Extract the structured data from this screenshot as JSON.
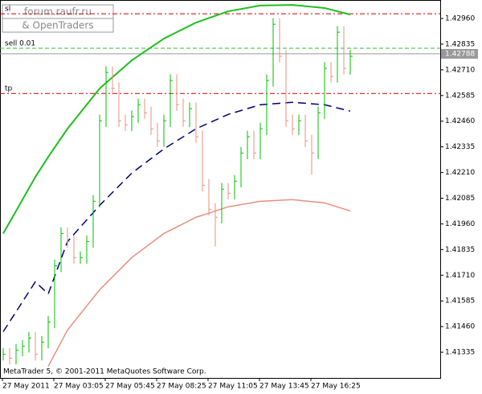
{
  "chart_data": {
    "type": "ohlc",
    "watermark": [
      "forum.raufr.ru",
      "& OpenTraders"
    ],
    "copyright": "MetaTrader 5, © 2001-2011 MetaQuotes Software Corp.",
    "time_labels": [
      "27 May 2011",
      "27 May 03:05",
      "27 May 05:45",
      "27 May 08:25",
      "27 May 11:05",
      "27 May 13:45",
      "27 May 16:25"
    ],
    "up_color": "#00c000",
    "down_color": "#e8907c",
    "close": [
      1.41325,
      1.41306,
      1.41345,
      1.41364,
      1.41404,
      1.41325,
      1.41384,
      1.41482,
      1.41756,
      1.41913,
      1.41874,
      1.41796,
      1.41796,
      1.41874,
      1.4207,
      1.42462,
      1.42697,
      1.42619,
      1.42462,
      1.42442,
      1.42482,
      1.4254,
      1.42501,
      1.42423,
      1.42364,
      1.42462,
      1.42658,
      1.4254,
      1.42462,
      1.42521,
      1.42384,
      1.42148,
      1.42031,
      1.41992,
      1.42129,
      1.42109,
      1.42168,
      1.42305,
      1.42384,
      1.42305,
      1.42423,
      1.42658,
      1.42932,
      1.42776,
      1.42462,
      1.42423,
      1.42462,
      1.42364,
      1.42305,
      1.42501,
      1.42717,
      1.42678,
      1.42893,
      1.42717,
      1.42776
    ],
    "high": [
      1.41355,
      1.41355,
      1.41375,
      1.41394,
      1.41434,
      1.41434,
      1.41414,
      1.41512,
      1.41786,
      1.41943,
      1.41943,
      1.41904,
      1.41826,
      1.41904,
      1.421,
      1.42492,
      1.42727,
      1.42727,
      1.42649,
      1.42492,
      1.42512,
      1.4257,
      1.4257,
      1.42531,
      1.42453,
      1.42492,
      1.42688,
      1.42688,
      1.4257,
      1.42551,
      1.42551,
      1.42414,
      1.42178,
      1.42061,
      1.42159,
      1.42159,
      1.42198,
      1.42335,
      1.42414,
      1.42414,
      1.42453,
      1.42688,
      1.42962,
      1.42962,
      1.42806,
      1.42492,
      1.42492,
      1.42492,
      1.42394,
      1.42531,
      1.42747,
      1.42747,
      1.42923,
      1.42923,
      1.42806
    ],
    "low": [
      1.41295,
      1.41276,
      1.41276,
      1.41315,
      1.41334,
      1.41295,
      1.41295,
      1.41354,
      1.41452,
      1.41726,
      1.41844,
      1.41766,
      1.41766,
      1.41766,
      1.41844,
      1.4204,
      1.42432,
      1.42589,
      1.42432,
      1.42412,
      1.42412,
      1.42452,
      1.42471,
      1.42393,
      1.42334,
      1.42334,
      1.42432,
      1.4251,
      1.42432,
      1.42432,
      1.42354,
      1.42118,
      1.42001,
      1.4185,
      1.41962,
      1.42079,
      1.42079,
      1.42138,
      1.42275,
      1.42275,
      1.42275,
      1.42393,
      1.42628,
      1.42746,
      1.42432,
      1.42393,
      1.42393,
      1.42334,
      1.422,
      1.42275,
      1.42471,
      1.42648,
      1.42648,
      1.42687,
      1.42687
    ],
    "curve_x": [
      0,
      5,
      7,
      10,
      15,
      20,
      25,
      30,
      35,
      40,
      45,
      50,
      54
    ],
    "curves": [
      {
        "color": "#1fbf1f",
        "dash": "",
        "values": [
          1.41913,
          1.42188,
          1.42286,
          1.42423,
          1.42619,
          1.42756,
          1.42862,
          1.4294,
          1.42995,
          1.43023,
          1.43026,
          1.43011,
          1.42979
        ]
      },
      {
        "color": "#000080",
        "dash": "10 6",
        "values": [
          1.41435,
          1.41678,
          1.41619,
          1.41874,
          1.4205,
          1.42207,
          1.42325,
          1.42423,
          1.42493,
          1.4254,
          1.42552,
          1.4254,
          1.42509
        ]
      },
      {
        "color": "#e8907c",
        "dash": "",
        "values": [
          null,
          null,
          1.41266,
          1.41443,
          1.41639,
          1.41796,
          1.41913,
          1.41992,
          1.42043,
          1.4207,
          1.42078,
          1.42062,
          1.42023
        ]
      }
    ],
    "levels": [
      {
        "name": "sl",
        "value": 1.42983,
        "color": "#cc0000",
        "dash": "6 3 2 3"
      },
      {
        "name": "sell 0.01",
        "value": 1.42815,
        "color": "#33bb33",
        "dash": "5 3"
      },
      {
        "value": 1.42788,
        "label": "1.42788",
        "color": "#999999",
        "dash": ""
      },
      {
        "name": "tp",
        "value": 1.42595,
        "color": "#cc0000",
        "dash": "6 3 2 3"
      }
    ],
    "ylim": [
      1.4121,
      1.4305
    ],
    "yticks": [
      {
        "value": 1.4296,
        "label": "1.42960"
      },
      {
        "value": 1.42835,
        "label": "1.42835"
      },
      {
        "value": 1.4271,
        "label": "1.42710"
      },
      {
        "value": 1.42585,
        "label": "1.42585"
      },
      {
        "value": 1.4246,
        "label": "1.42460"
      },
      {
        "value": 1.42335,
        "label": "1.42335"
      },
      {
        "value": 1.4221,
        "label": "1.42210"
      },
      {
        "value": 1.42085,
        "label": "1.42085"
      },
      {
        "value": 1.4196,
        "label": "1.41960"
      },
      {
        "value": 1.41835,
        "label": "1.41835"
      },
      {
        "value": 1.4171,
        "label": "1.41710"
      },
      {
        "value": 1.41585,
        "label": "1.41585"
      },
      {
        "value": 1.4146,
        "label": "1.41460"
      },
      {
        "value": 1.41335,
        "label": "1.41335"
      }
    ]
  }
}
